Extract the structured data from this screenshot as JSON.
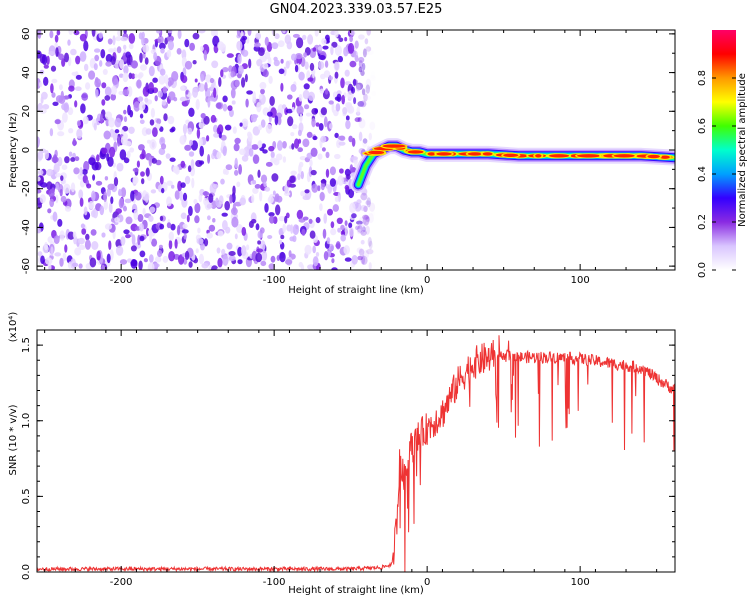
{
  "title": "GN04.2023.339.03.57.E25",
  "colors": {
    "snr_line": "#ee3333",
    "axis": "#000000",
    "noise_purple": "#7a1de6",
    "colormap": [
      "#ffffff",
      "#d9c5ff",
      "#8a2be2",
      "#3300ff",
      "#00a0ff",
      "#00ffcc",
      "#40ff00",
      "#ffff00",
      "#ff9900",
      "#ff0000",
      "#ff0066"
    ]
  },
  "chart_data": [
    {
      "type": "heatmap",
      "xlabel": "Height of straight line (km)",
      "ylabel": "Frequency (Hz)",
      "xlim": [
        -255,
        162
      ],
      "ylim": [
        -62,
        62
      ],
      "x_ticks": [
        -200,
        -100,
        0,
        100
      ],
      "y_ticks": [
        -60,
        -40,
        -20,
        0,
        20,
        40,
        60
      ],
      "noise_region_x": [
        -255,
        -40
      ],
      "signal_track": {
        "x": [
          -45,
          -40,
          -35,
          -30,
          -25,
          -20,
          -15,
          -10,
          -5,
          0,
          10,
          20,
          40,
          60,
          80,
          100,
          120,
          140,
          162
        ],
        "freq_hz": [
          -18,
          -8,
          -2,
          0,
          2,
          2,
          0,
          -1,
          -1,
          -2,
          -2,
          -2,
          -2,
          -3,
          -3,
          -3,
          -3,
          -3,
          -4
        ]
      },
      "colorbar": {
        "label": "Normalized spectral amplitude",
        "range": [
          0.0,
          1.0
        ],
        "ticks": [
          "0.0",
          "0.2",
          "0.4",
          "0.6",
          "0.8"
        ],
        "tick_values": [
          0.0,
          0.2,
          0.4,
          0.6,
          0.8
        ]
      }
    },
    {
      "type": "line",
      "xlabel": "Height of straight line (km)",
      "ylabel": "SNR (10 * v/v)",
      "y_multiplier": "(x10⁴)",
      "xlim": [
        -255,
        162
      ],
      "ylim": [
        0.0,
        1.6
      ],
      "x_ticks": [
        -200,
        -100,
        0,
        100
      ],
      "y_ticks": [
        "0.0",
        "0.5",
        "1.0",
        "1.5"
      ],
      "series": [
        {
          "x": [
            -255,
            -200,
            -150,
            -100,
            -50,
            -30,
            -23,
            -20,
            -18,
            -15,
            -12,
            -8,
            -5,
            0,
            5,
            10,
            15,
            20,
            25,
            30,
            35,
            40,
            45,
            50,
            60,
            80,
            100,
            120,
            140,
            150,
            162
          ],
          "values": [
            0.02,
            0.02,
            0.02,
            0.02,
            0.02,
            0.03,
            0.05,
            0.3,
            0.75,
            0.6,
            0.8,
            0.85,
            0.9,
            0.95,
            1.0,
            1.05,
            1.15,
            1.25,
            1.32,
            1.38,
            1.4,
            1.42,
            1.43,
            1.43,
            1.42,
            1.42,
            1.41,
            1.38,
            1.35,
            1.28,
            1.2
          ]
        }
      ]
    }
  ]
}
